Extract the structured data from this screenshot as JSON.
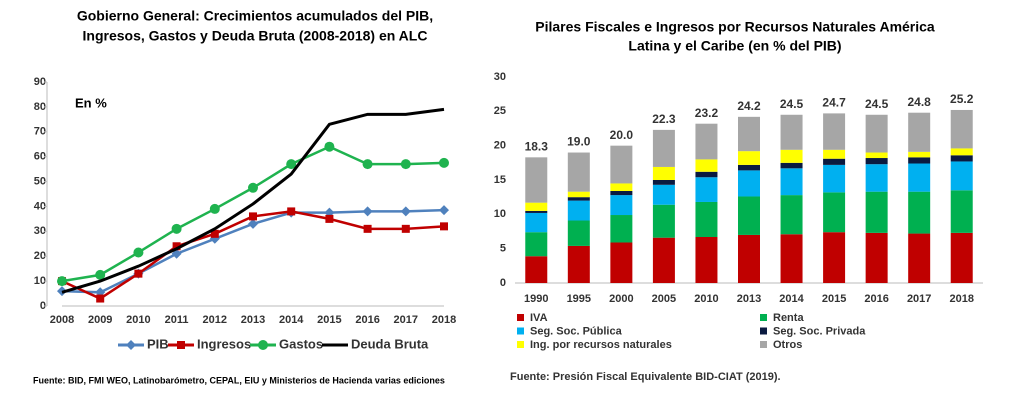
{
  "chart_data": [
    {
      "type": "line",
      "title": [
        "Gobierno General: Crecimientos acumulados del PIB,",
        "Ingresos, Gastos y Deuda Bruta (2008-2018) en ALC"
      ],
      "annotation": "En %",
      "source": "Fuente: BID, FMI WEO, Latinobarómetro, CEPAL, EIU y Ministerios de Hacienda varias ediciones",
      "categories": [
        "2008",
        "2009",
        "2010",
        "2011",
        "2012",
        "2013",
        "2014",
        "2015",
        "2016",
        "2017",
        "2018"
      ],
      "ylim": [
        0,
        90
      ],
      "yticks": [
        0,
        10,
        20,
        30,
        40,
        50,
        60,
        70,
        80,
        90
      ],
      "series": [
        {
          "name": "PIB",
          "color": "#4f81bd",
          "marker": "diamond",
          "values": [
            6,
            5.5,
            13,
            21,
            27,
            33,
            37.5,
            37.5,
            38,
            38,
            38.5
          ]
        },
        {
          "name": "Ingresos",
          "color": "#c00000",
          "marker": "square",
          "values": [
            10,
            3,
            13,
            24,
            29,
            36,
            38,
            35,
            31,
            31,
            32
          ]
        },
        {
          "name": "Gastos",
          "color": "#1fb34f",
          "marker": "circle",
          "values": [
            10,
            12.5,
            21.5,
            31,
            39,
            47.5,
            57,
            64,
            57,
            57,
            57.5
          ]
        },
        {
          "name": "Deuda Bruta",
          "color": "#000000",
          "marker": "none",
          "values": [
            5.5,
            10,
            16,
            23,
            31,
            41,
            53,
            73,
            77,
            77,
            79
          ]
        }
      ]
    },
    {
      "type": "stacked-bar",
      "title": [
        "Pilares Fiscales e Ingresos por Recursos Naturales  América",
        "Latina y el Caribe (en % del PIB)"
      ],
      "source": "Fuente: Presión Fiscal Equivalente BID-CIAT (2019).",
      "categories": [
        "1990",
        "1995",
        "2000",
        "2005",
        "2010",
        "2013",
        "2014",
        "2015",
        "2016",
        "2017",
        "2018"
      ],
      "ylim": [
        0,
        30
      ],
      "yticks": [
        0,
        5,
        10,
        15,
        20,
        25,
        30
      ],
      "totals": [
        18.3,
        19,
        20,
        22.3,
        23.2,
        24.2,
        24.5,
        24.7,
        24.5,
        24.8,
        25.2
      ],
      "total_labels": [
        "18.3",
        "19.0",
        "20.0",
        "22.3",
        "23.2",
        "24.2",
        "24.5",
        "24.7",
        "24.5",
        "24.8",
        "25.2"
      ],
      "series": [
        {
          "name": "IVA",
          "color": "#c00000",
          "values": [
            3.9,
            5.4,
            5.9,
            6.6,
            6.7,
            7.0,
            7.1,
            7.4,
            7.3,
            7.2,
            7.3
          ]
        },
        {
          "name": "Renta",
          "color": "#00b050",
          "values": [
            3.5,
            3.7,
            4.0,
            4.8,
            5.1,
            5.6,
            5.7,
            5.8,
            6.0,
            6.1,
            6.2
          ]
        },
        {
          "name": "Seg. Soc. Pública",
          "color": "#00b0f0",
          "values": [
            2.8,
            2.9,
            2.9,
            2.9,
            3.6,
            3.8,
            3.9,
            4.0,
            4.0,
            4.1,
            4.2
          ]
        },
        {
          "name": "Seg. Soc. Privada",
          "color": "#0a1a40",
          "values": [
            0.3,
            0.5,
            0.6,
            0.7,
            0.8,
            0.8,
            0.8,
            0.9,
            0.9,
            0.9,
            0.9
          ]
        },
        {
          "name": "Ing. por recursos naturales",
          "color": "#ffff00",
          "values": [
            1.2,
            0.8,
            1.1,
            1.9,
            1.8,
            2.0,
            1.9,
            1.3,
            0.8,
            0.8,
            1.0
          ]
        },
        {
          "name": "Otros",
          "color": "#a6a6a6",
          "values": [
            6.6,
            5.7,
            5.5,
            5.4,
            5.2,
            5.0,
            5.1,
            5.3,
            5.5,
            5.7,
            5.6
          ]
        }
      ]
    }
  ]
}
